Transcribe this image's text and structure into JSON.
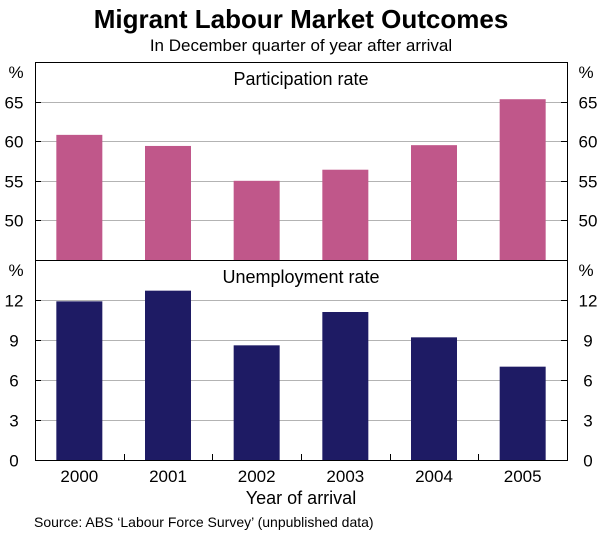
{
  "title": "Migrant Labour Market Outcomes",
  "subtitle": "In December quarter of year after arrival",
  "xlabel": "Year of arrival",
  "source": "Source: ABS ‘Labour Force Survey’ (unpublished data)",
  "chart_data": [
    {
      "type": "bar",
      "title": "Participation rate",
      "unit": "%",
      "categories": [
        "2000",
        "2001",
        "2002",
        "2003",
        "2004",
        "2005"
      ],
      "values": [
        60.8,
        59.4,
        55.0,
        56.4,
        59.5,
        65.3
      ],
      "ylim": [
        45,
        70
      ],
      "yticks": [
        50,
        55,
        60,
        65
      ],
      "color": "#c0578a",
      "grid": true
    },
    {
      "type": "bar",
      "title": "Unemployment rate",
      "unit": "%",
      "categories": [
        "2000",
        "2001",
        "2002",
        "2003",
        "2004",
        "2005"
      ],
      "values": [
        11.9,
        12.7,
        8.6,
        11.1,
        9.2,
        7.0
      ],
      "ylim": [
        0,
        15
      ],
      "yticks": [
        0,
        3,
        6,
        9,
        12
      ],
      "color": "#1e1b64",
      "grid": true
    }
  ]
}
